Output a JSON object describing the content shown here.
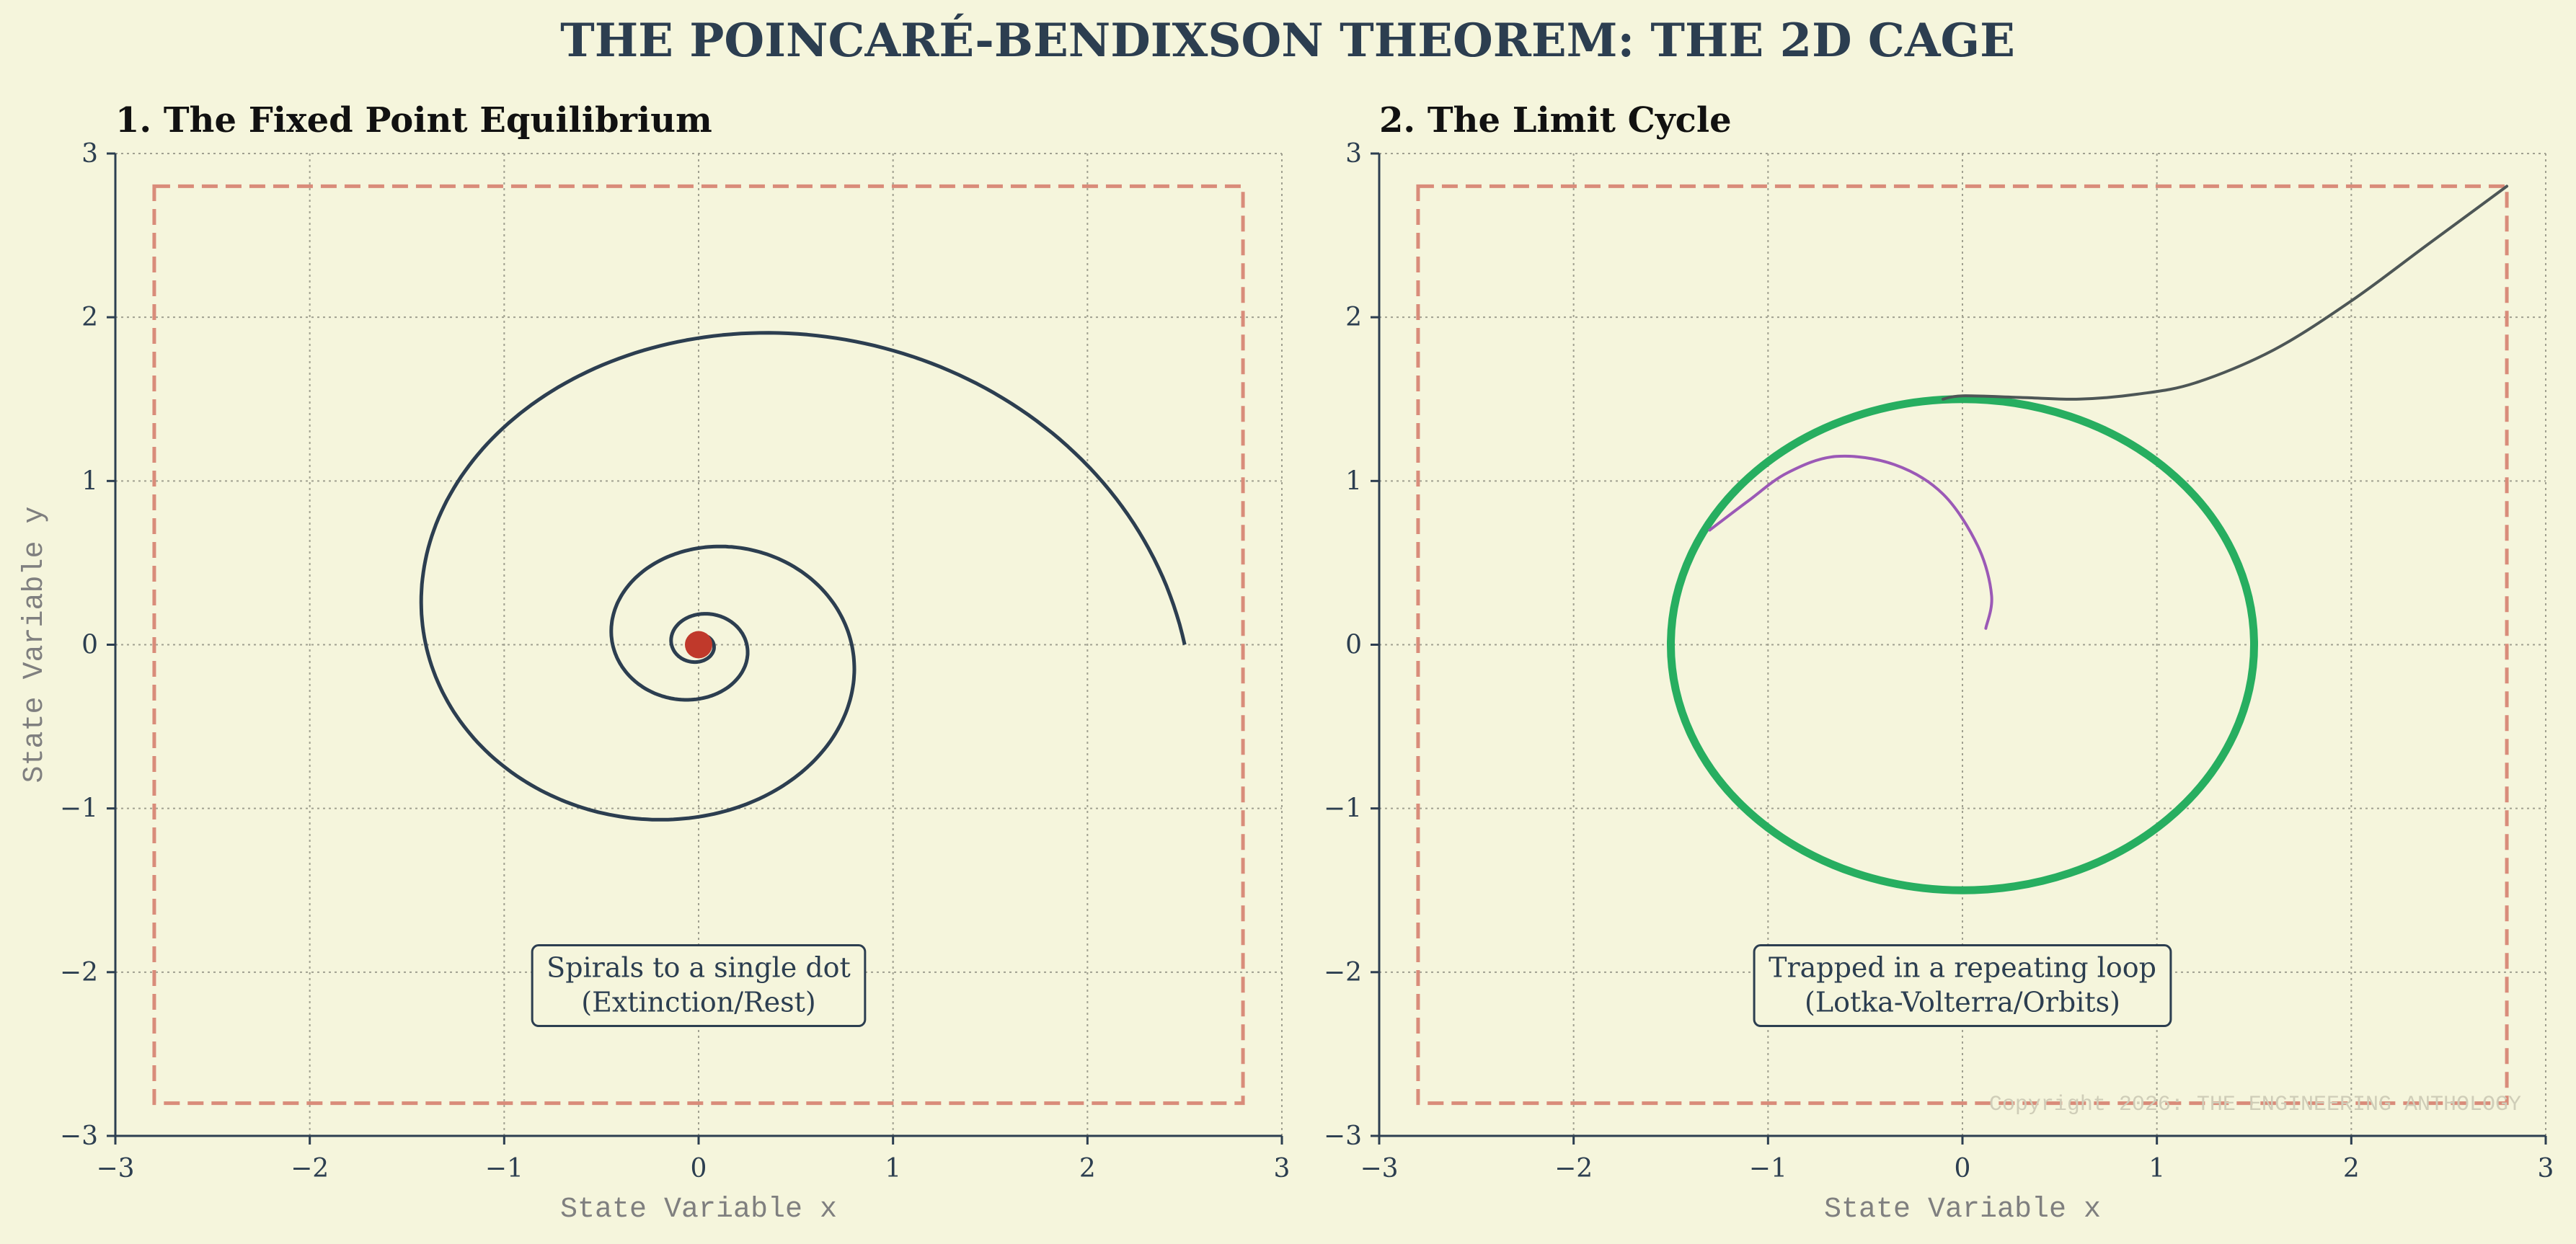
{
  "figure": {
    "title": "THE POINCARÉ-BENDIXSON THEOREM: THE 2D CAGE",
    "copyright": "Copyright 2026: THE ENGINEERING ANTHOLOGY",
    "colors": {
      "background": "#f5f5dc",
      "title": "#2c3e50",
      "grid": "#a0a090",
      "cage": "#d98c7a",
      "spiral": "#2c3e50",
      "fixed_point": "#c0392b",
      "limit_cycle": "#27ae60",
      "outer_trajectory": "#4d5656",
      "inner_trajectory": "#9b59b6",
      "label_text": "#7f7f7f"
    }
  },
  "chart_data": [
    {
      "type": "line",
      "title": "1. The Fixed Point Equilibrium",
      "xlabel": "State Variable x",
      "ylabel": "State Variable y",
      "xlim": [
        -3,
        3
      ],
      "ylim": [
        -3,
        3
      ],
      "xticks": [
        -3,
        -2,
        -1,
        0,
        1,
        2,
        3
      ],
      "yticks": [
        -3,
        -2,
        -1,
        0,
        1,
        2,
        3
      ],
      "xtick_labels": [
        "−3",
        "−2",
        "−1",
        "0",
        "1",
        "2",
        "3"
      ],
      "ytick_labels": [
        "−3",
        "−2",
        "−1",
        "0",
        "1",
        "2",
        "3"
      ],
      "grid": true,
      "cage_box": {
        "xmin": -2.8,
        "xmax": 2.8,
        "ymin": -2.8,
        "ymax": 2.8,
        "style": "dashed"
      },
      "series": [
        {
          "name": "spiral trajectory",
          "kind": "spiral",
          "start": [
            2.5,
            0.0
          ],
          "decay_per_turn": 0.315,
          "turns": 5.5,
          "direction": "counterclockwise"
        },
        {
          "name": "fixed point",
          "kind": "point",
          "x": 0.0,
          "y": 0.0
        }
      ],
      "annotation": {
        "lines": [
          "Spirals to a single dot",
          "(Extinction/Rest)"
        ],
        "x": 0.0,
        "y": -2.1
      }
    },
    {
      "type": "line",
      "title": "2. The Limit Cycle",
      "xlabel": "State Variable x",
      "ylabel": "",
      "xlim": [
        -3,
        3
      ],
      "ylim": [
        -3,
        3
      ],
      "xticks": [
        -3,
        -2,
        -1,
        0,
        1,
        2,
        3
      ],
      "yticks": [
        -3,
        -2,
        -1,
        0,
        1,
        2,
        3
      ],
      "xtick_labels": [
        "−3",
        "−2",
        "−1",
        "0",
        "1",
        "2",
        "3"
      ],
      "ytick_labels": [
        "−3",
        "−2",
        "−1",
        "0",
        "1",
        "2",
        "3"
      ],
      "grid": true,
      "cage_box": {
        "xmin": -2.8,
        "xmax": 2.8,
        "ymin": -2.8,
        "ymax": 2.8,
        "style": "dashed"
      },
      "series": [
        {
          "name": "limit cycle",
          "kind": "circle",
          "radius": 1.5
        },
        {
          "name": "outer trajectory",
          "kind": "path",
          "points": [
            [
              2.8,
              2.8
            ],
            [
              2.4,
              2.45
            ],
            [
              2.0,
              2.1
            ],
            [
              1.6,
              1.8
            ],
            [
              1.2,
              1.6
            ],
            [
              0.9,
              1.53
            ],
            [
              0.6,
              1.5
            ],
            [
              0.3,
              1.51
            ],
            [
              0.0,
              1.52
            ],
            [
              -0.1,
              1.5
            ]
          ]
        },
        {
          "name": "inner trajectory",
          "kind": "path",
          "points": [
            [
              0.12,
              0.1
            ],
            [
              0.15,
              0.3
            ],
            [
              0.08,
              0.6
            ],
            [
              -0.1,
              0.92
            ],
            [
              -0.35,
              1.1
            ],
            [
              -0.65,
              1.15
            ],
            [
              -0.9,
              1.05
            ],
            [
              -1.1,
              0.88
            ],
            [
              -1.3,
              0.7
            ]
          ]
        }
      ],
      "annotation": {
        "lines": [
          "Trapped in a repeating loop",
          "(Lotka-Volterra/Orbits)"
        ],
        "x": 0.0,
        "y": -2.1
      }
    }
  ]
}
